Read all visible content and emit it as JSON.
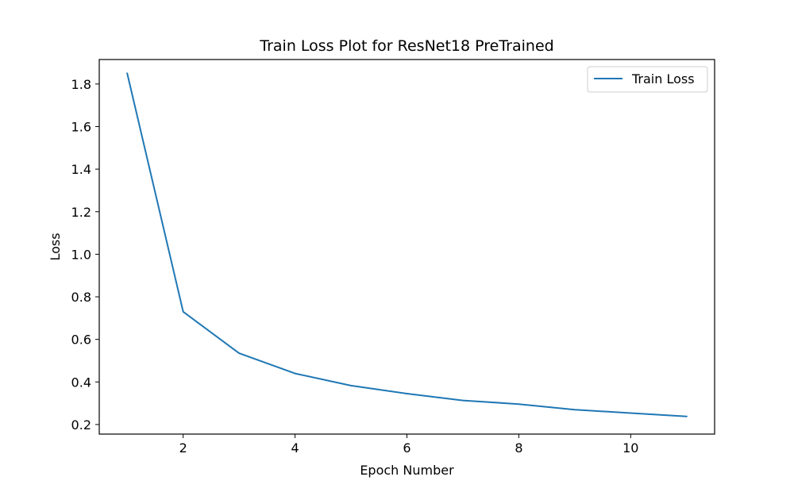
{
  "colors": {
    "series": "#1f77b4",
    "axis": "#000000",
    "background": "#ffffff",
    "legend_border": "#cccccc"
  },
  "chart_data": {
    "type": "line",
    "title": "Train Loss Plot for ResNet18 PreTrained",
    "xlabel": "Epoch Number",
    "ylabel": "Loss",
    "xlim": [
      0.5,
      11.5
    ],
    "ylim": [
      0.155,
      1.915
    ],
    "xticks": [
      2,
      4,
      6,
      8,
      10
    ],
    "xtick_labels": [
      "2",
      "4",
      "6",
      "8",
      "10"
    ],
    "yticks": [
      0.2,
      0.4,
      0.6,
      0.8,
      1.0,
      1.2,
      1.4,
      1.6,
      1.8
    ],
    "ytick_labels": [
      "0.2",
      "0.4",
      "0.6",
      "0.8",
      "1.0",
      "1.2",
      "1.4",
      "1.6",
      "1.8"
    ],
    "grid": false,
    "legend_position": "top-right",
    "series": [
      {
        "name": "Train Loss",
        "x": [
          1,
          2,
          3,
          4,
          5,
          6,
          7,
          8,
          9,
          10,
          11
        ],
        "y": [
          1.85,
          0.73,
          0.535,
          0.44,
          0.383,
          0.345,
          0.313,
          0.296,
          0.27,
          0.254,
          0.238
        ]
      }
    ]
  }
}
